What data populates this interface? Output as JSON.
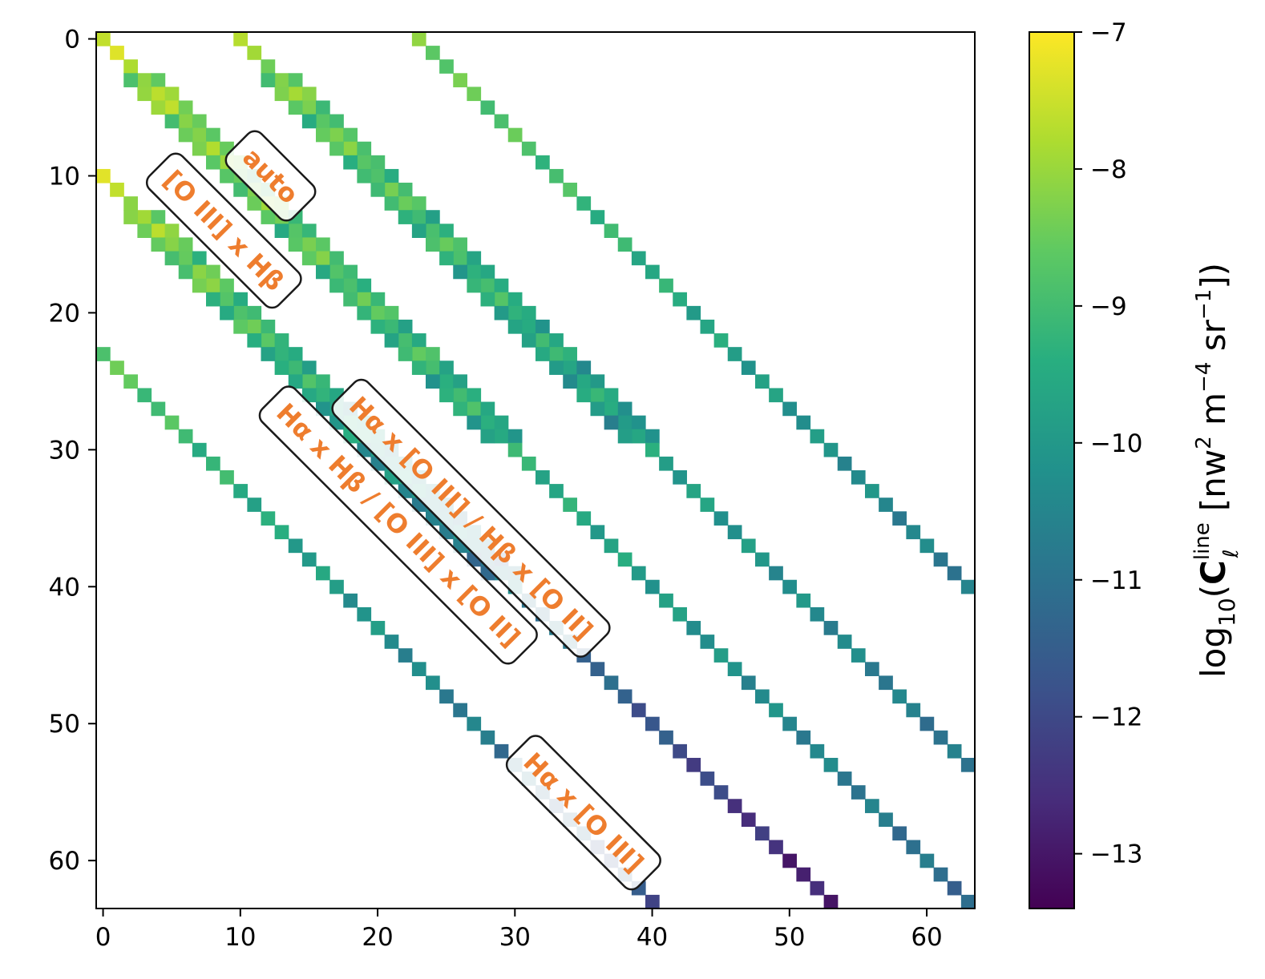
{
  "chart_data": {
    "type": "heatmap",
    "x_ticks": [
      "0",
      "10",
      "20",
      "30",
      "40",
      "50",
      "60"
    ],
    "y_ticks": [
      "0",
      "10",
      "20",
      "30",
      "40",
      "50",
      "60"
    ],
    "xlim": [
      -0.5,
      63.5
    ],
    "ylim": [
      63.5,
      -0.5
    ],
    "grid": false,
    "colormap": "viridis",
    "colorbar": {
      "range": [
        -13.4,
        -7.0
      ],
      "ticks": [
        "−7",
        "−8",
        "−9",
        "−10",
        "−11",
        "−12",
        "−13"
      ],
      "tick_values": [
        -7,
        -8,
        -9,
        -10,
        -11,
        -12,
        -13
      ],
      "label_parts": {
        "func": "log",
        "func_sub": "10",
        "C": "C",
        "C_sup": "line",
        "C_sub": "ℓ",
        "unit_a": "nw",
        "unit_a_sup": "2",
        "unit_b": "m",
        "unit_b_sup": "−4",
        "unit_c": "sr",
        "unit_c_sup": "−1"
      }
    },
    "bands": [
      {
        "name": "auto",
        "offset": 0,
        "rows": [
          0,
          63
        ],
        "value_start": -7.6,
        "value_end": -11.2
      },
      {
        "name": "[O III] x Hβ",
        "offset": 10,
        "rows": [
          0,
          53
        ],
        "value_start": -8.0,
        "value_end": -11.0
      },
      {
        "name": "Hα x [O III] / Hβ x [O II]",
        "offset": 23,
        "rows": [
          0,
          40
        ],
        "value_start": -8.4,
        "value_end": -10.8
      },
      {
        "name": "Hα x Hβ / [O III] x [O II]",
        "offset": -10,
        "rows": [
          10,
          63
        ],
        "value_start": -7.6,
        "value_end": -13.0
      },
      {
        "name": "Hα x [O III]",
        "offset": -23,
        "rows": [
          23,
          63
        ],
        "value_start": -8.6,
        "value_end": -11.8
      }
    ],
    "annotations": [
      {
        "text": "auto",
        "x": 12.2,
        "y": 10.0,
        "angle": 45
      },
      {
        "text": "[O III] x Hβ",
        "x": 8.8,
        "y": 14.0,
        "angle": 45
      },
      {
        "text": "Hα x [O III] / Hβ x [O II]",
        "x": 26.8,
        "y": 35.0,
        "angle": 45
      },
      {
        "text": "Hα x Hβ / [O III] x [O II]",
        "x": 21.5,
        "y": 35.5,
        "angle": 45
      },
      {
        "text": "Hα x [O III]",
        "x": 35.0,
        "y": 56.5,
        "angle": 45
      }
    ]
  }
}
